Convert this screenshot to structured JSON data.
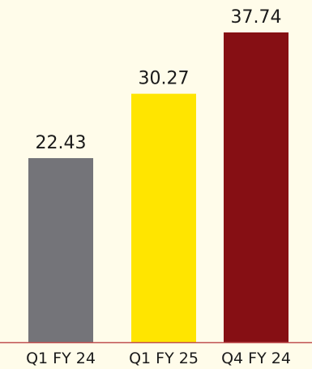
{
  "colors": {
    "background": "#fffcea",
    "baseline": "#c05050",
    "text": "#1a1a1a"
  },
  "chart_data": {
    "type": "bar",
    "categories": [
      "Q1 FY 24",
      "Q1 FY 25",
      "Q4 FY 24"
    ],
    "values": [
      22.43,
      30.27,
      37.74
    ],
    "value_labels": [
      "22.43",
      "30.27",
      "37.74"
    ],
    "bar_colors": [
      "#747479",
      "#ffe500",
      "#860f14"
    ],
    "title": "",
    "xlabel": "",
    "ylabel": "",
    "ylim": [
      0,
      37.74
    ],
    "grid": false,
    "legend": "none"
  }
}
